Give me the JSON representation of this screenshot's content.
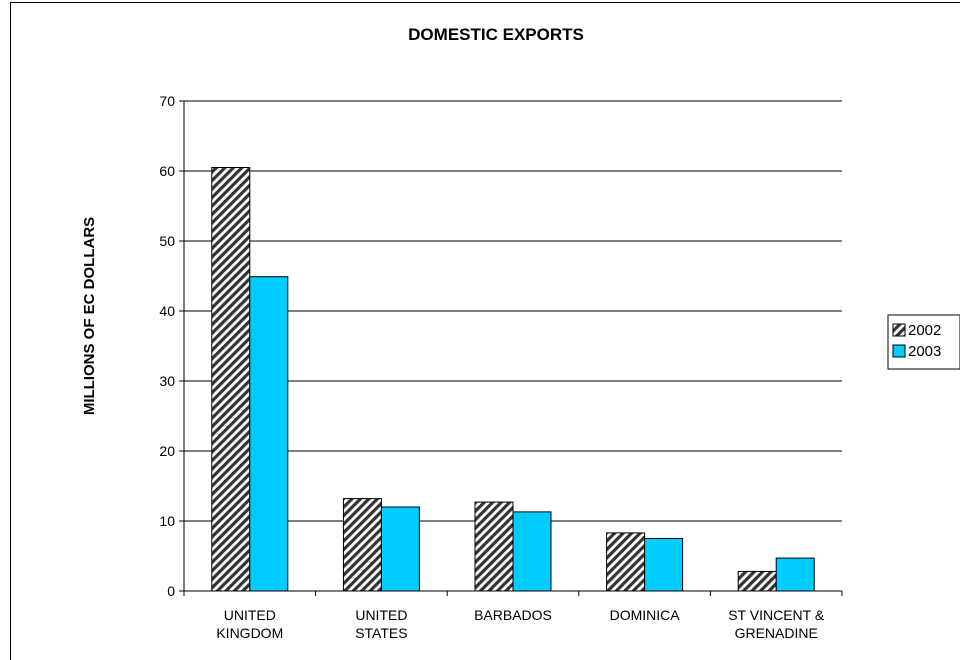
{
  "chart_data": {
    "type": "bar",
    "title": "DOMESTIC EXPORTS",
    "ylabel": "MILLIONS OF EC DOLLARS",
    "xlabel": "",
    "ylim": [
      0,
      70
    ],
    "yticks": [
      0,
      10,
      20,
      30,
      40,
      50,
      60,
      70
    ],
    "grid": true,
    "legend_position": "right",
    "categories": [
      [
        "UNITED",
        "KINGDOM"
      ],
      [
        "UNITED",
        "STATES"
      ],
      [
        "BARBADOS"
      ],
      [
        "DOMINICA"
      ],
      [
        "ST VINCENT &",
        "GRENADINE"
      ]
    ],
    "series": [
      {
        "name": "2002",
        "values": [
          60.5,
          13.2,
          12.7,
          8.3,
          2.8
        ],
        "color": "#8c8c8c",
        "pattern": "diagonal-stripes"
      },
      {
        "name": "2003",
        "values": [
          44.9,
          12.0,
          11.3,
          7.5,
          4.7
        ],
        "color": "#00ccff",
        "pattern": "solid"
      }
    ]
  }
}
